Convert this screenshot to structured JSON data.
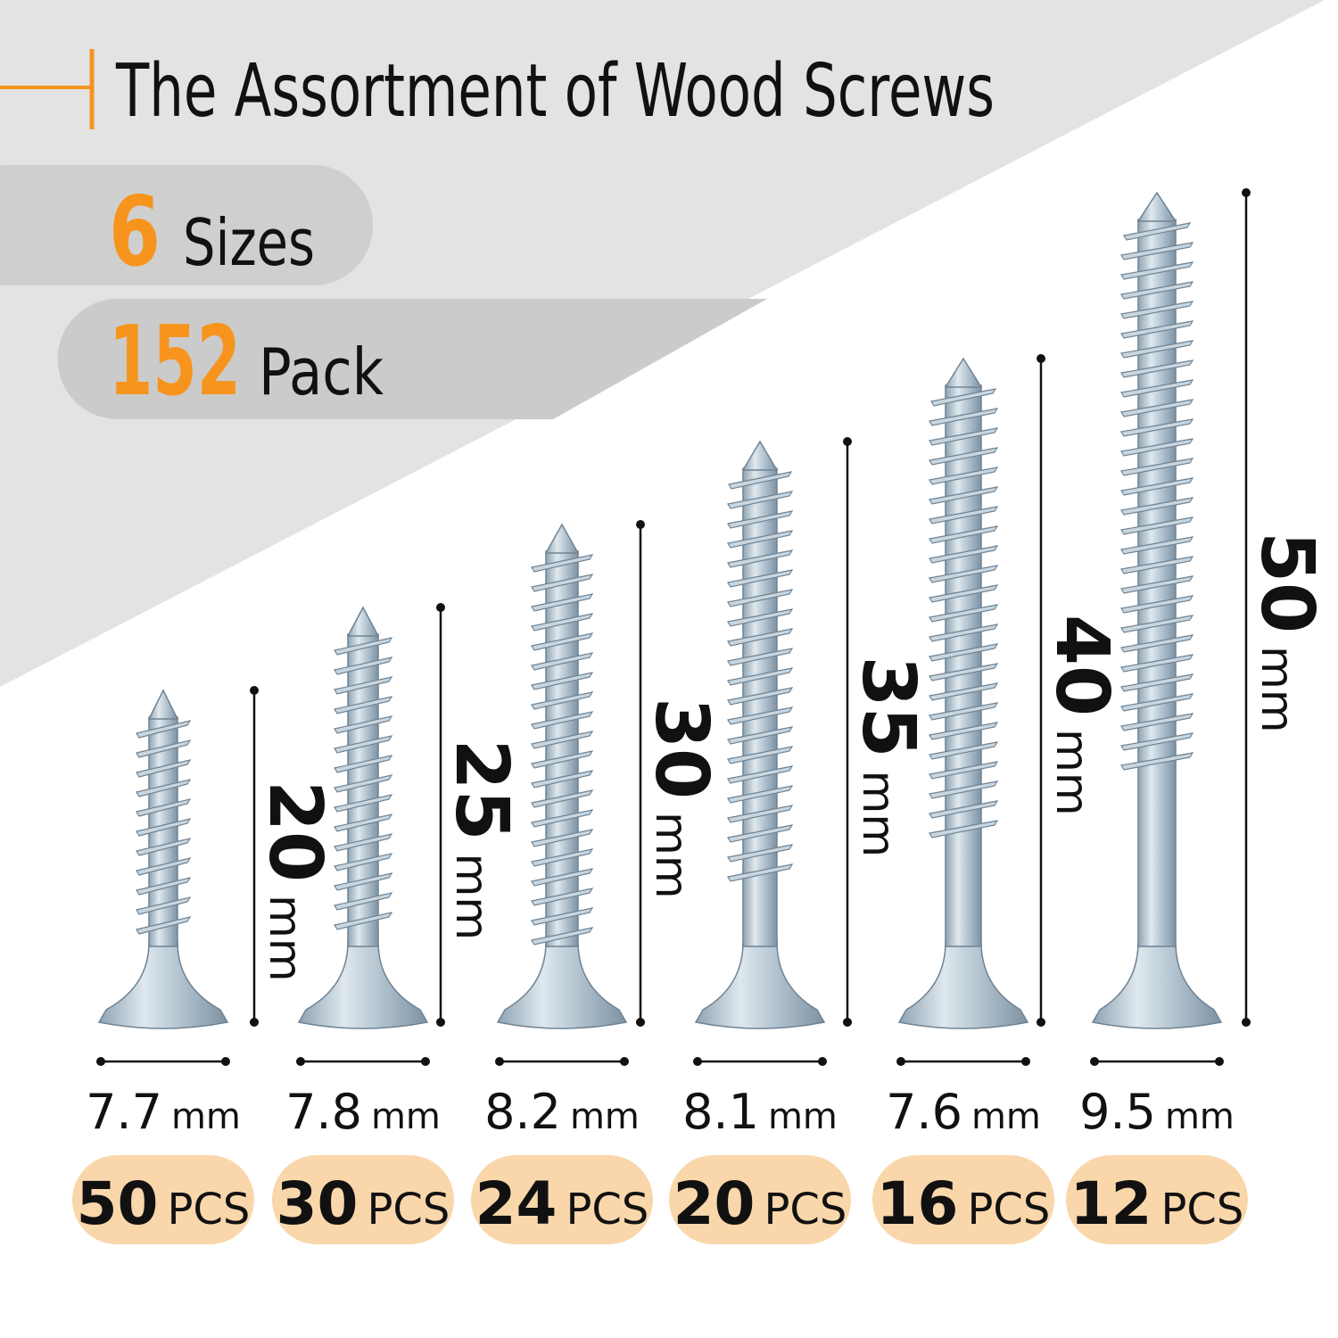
{
  "header": {
    "title": "The Assortment of Wood Screws"
  },
  "badges": [
    {
      "number": "6",
      "label": "Sizes"
    },
    {
      "number": "152",
      "label": "Pack"
    }
  ],
  "screws": [
    {
      "length": "20",
      "length_unit": "mm",
      "head": "7.7",
      "head_unit": "mm",
      "count": "50",
      "count_unit": "PCS"
    },
    {
      "length": "25",
      "length_unit": "mm",
      "head": "7.8",
      "head_unit": "mm",
      "count": "30",
      "count_unit": "PCS"
    },
    {
      "length": "30",
      "length_unit": "mm",
      "head": "8.2",
      "head_unit": "mm",
      "count": "24",
      "count_unit": "PCS"
    },
    {
      "length": "35",
      "length_unit": "mm",
      "head": "8.1",
      "head_unit": "mm",
      "count": "20",
      "count_unit": "PCS"
    },
    {
      "length": "40",
      "length_unit": "mm",
      "head": "7.6",
      "head_unit": "mm",
      "count": "16",
      "count_unit": "PCS"
    },
    {
      "length": "50",
      "length_unit": "mm",
      "head": "9.5",
      "head_unit": "mm",
      "count": "12",
      "count_unit": "PCS"
    }
  ]
}
